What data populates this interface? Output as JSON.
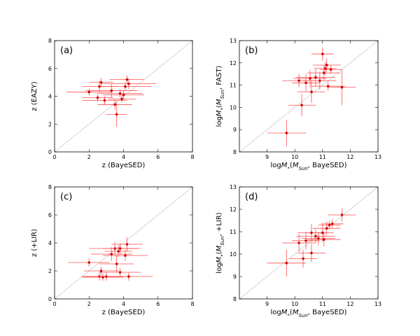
{
  "figure": {
    "panel_count": 4
  },
  "colors": {
    "points": "#d40000",
    "error_bars": "#ff3b3b",
    "diagonal": "#9a9a9a",
    "axes": "#000000"
  },
  "chart_data": [
    {
      "type": "scatter",
      "panel_label": "(a)",
      "xlabel": "z (BayeSED)",
      "ylabel": "z (EAZY)",
      "xlim": [
        0,
        8
      ],
      "ylim": [
        0,
        8
      ],
      "xticks": [
        "0",
        "2",
        "4",
        "6",
        "8"
      ],
      "yticks": [
        "0",
        "2",
        "4",
        "6",
        "8"
      ],
      "one_to_one_line": true,
      "points": [
        {
          "x": 2.0,
          "y": 4.3,
          "xerr": 1.3,
          "yerr": 0.25
        },
        {
          "x": 2.6,
          "y": 4.7,
          "xerr": 1.0,
          "yerr": 0.4
        },
        {
          "x": 2.7,
          "y": 5.0,
          "xerr": 0.7,
          "yerr": 0.3
        },
        {
          "x": 2.5,
          "y": 3.9,
          "xerr": 0.9,
          "yerr": 0.3
        },
        {
          "x": 2.9,
          "y": 3.7,
          "xerr": 1.3,
          "yerr": 0.3
        },
        {
          "x": 3.3,
          "y": 4.4,
          "xerr": 1.5,
          "yerr": 0.5
        },
        {
          "x": 3.5,
          "y": 3.4,
          "xerr": 1.0,
          "yerr": 0.35
        },
        {
          "x": 3.6,
          "y": 2.7,
          "xerr": 0.6,
          "yerr": 0.9
        },
        {
          "x": 3.8,
          "y": 4.2,
          "xerr": 1.3,
          "yerr": 0.3
        },
        {
          "x": 3.9,
          "y": 3.8,
          "xerr": 0.8,
          "yerr": 0.25
        },
        {
          "x": 4.0,
          "y": 4.1,
          "xerr": 1.2,
          "yerr": 0.3
        },
        {
          "x": 4.1,
          "y": 4.7,
          "xerr": 1.5,
          "yerr": 0.3
        },
        {
          "x": 4.2,
          "y": 5.2,
          "xerr": 1.0,
          "yerr": 0.3
        },
        {
          "x": 4.3,
          "y": 4.9,
          "xerr": 1.6,
          "yerr": 0.4
        }
      ]
    },
    {
      "type": "scatter",
      "panel_label": "(b)",
      "xlabel": "logM*(M_Sun, BayeSED)",
      "ylabel": "logM*(M_Sun, FAST)",
      "xlim": [
        8,
        13
      ],
      "ylim": [
        8,
        13
      ],
      "xticks": [
        "9",
        "10",
        "11",
        "12",
        "13"
      ],
      "yticks": [
        "8",
        "9",
        "10",
        "11",
        "12",
        "13"
      ],
      "one_to_one_line": true,
      "points": [
        {
          "x": 9.7,
          "y": 8.85,
          "xerr": 0.7,
          "yerr": 0.6
        },
        {
          "x": 10.25,
          "y": 10.1,
          "xerr": 0.5,
          "yerr": 0.5
        },
        {
          "x": 10.15,
          "y": 11.2,
          "xerr": 0.6,
          "yerr": 0.3
        },
        {
          "x": 10.4,
          "y": 11.1,
          "xerr": 0.5,
          "yerr": 0.4
        },
        {
          "x": 10.55,
          "y": 11.3,
          "xerr": 0.6,
          "yerr": 0.4
        },
        {
          "x": 10.6,
          "y": 10.7,
          "xerr": 0.5,
          "yerr": 0.5
        },
        {
          "x": 10.75,
          "y": 11.35,
          "xerr": 0.7,
          "yerr": 0.4
        },
        {
          "x": 10.9,
          "y": 11.2,
          "xerr": 0.6,
          "yerr": 0.4
        },
        {
          "x": 11.0,
          "y": 12.4,
          "xerr": 0.4,
          "yerr": 0.3
        },
        {
          "x": 11.05,
          "y": 11.55,
          "xerr": 0.6,
          "yerr": 0.35
        },
        {
          "x": 11.1,
          "y": 11.75,
          "xerr": 0.4,
          "yerr": 0.3
        },
        {
          "x": 11.15,
          "y": 11.9,
          "xerr": 0.5,
          "yerr": 0.3
        },
        {
          "x": 11.3,
          "y": 11.7,
          "xerr": 0.4,
          "yerr": 0.2
        },
        {
          "x": 11.2,
          "y": 10.95,
          "xerr": 0.6,
          "yerr": 0.2
        },
        {
          "x": 11.7,
          "y": 10.9,
          "xerr": 0.5,
          "yerr": 0.8
        }
      ]
    },
    {
      "type": "scatter",
      "panel_label": "(c)",
      "xlabel": "z (BayeSED)",
      "ylabel": "z (+LIR)",
      "xlim": [
        0,
        8
      ],
      "ylim": [
        0,
        8
      ],
      "xticks": [
        "0",
        "2",
        "4",
        "6",
        "8"
      ],
      "yticks": [
        "0",
        "2",
        "4",
        "6",
        "8"
      ],
      "one_to_one_line": true,
      "points": [
        {
          "x": 2.0,
          "y": 2.6,
          "xerr": 1.2,
          "yerr": 0.3
        },
        {
          "x": 2.6,
          "y": 1.6,
          "xerr": 1.0,
          "yerr": 0.3
        },
        {
          "x": 2.7,
          "y": 2.0,
          "xerr": 1.0,
          "yerr": 0.3
        },
        {
          "x": 2.8,
          "y": 1.55,
          "xerr": 1.2,
          "yerr": 0.25
        },
        {
          "x": 3.0,
          "y": 1.6,
          "xerr": 1.3,
          "yerr": 0.3
        },
        {
          "x": 3.3,
          "y": 3.2,
          "xerr": 1.2,
          "yerr": 0.5
        },
        {
          "x": 3.5,
          "y": 3.6,
          "xerr": 1.5,
          "yerr": 0.5
        },
        {
          "x": 3.6,
          "y": 2.5,
          "xerr": 1.0,
          "yerr": 0.6
        },
        {
          "x": 3.7,
          "y": 3.4,
          "xerr": 0.8,
          "yerr": 0.4
        },
        {
          "x": 3.8,
          "y": 1.9,
          "xerr": 1.2,
          "yerr": 0.3
        },
        {
          "x": 3.8,
          "y": 3.6,
          "xerr": 1.0,
          "yerr": 0.4
        },
        {
          "x": 4.1,
          "y": 3.1,
          "xerr": 1.3,
          "yerr": 0.4
        },
        {
          "x": 4.2,
          "y": 3.9,
          "xerr": 0.9,
          "yerr": 0.5
        },
        {
          "x": 4.3,
          "y": 1.6,
          "xerr": 1.4,
          "yerr": 0.3
        }
      ]
    },
    {
      "type": "scatter",
      "panel_label": "(d)",
      "xlabel": "logM*(M_Sun, BayeSED)",
      "ylabel": "logM*(M_Sun, +LIR)",
      "xlim": [
        8,
        13
      ],
      "ylim": [
        8,
        13
      ],
      "xticks": [
        "9",
        "10",
        "11",
        "12",
        "13"
      ],
      "yticks": [
        "8",
        "9",
        "10",
        "11",
        "12",
        "13"
      ],
      "one_to_one_line": true,
      "points": [
        {
          "x": 9.7,
          "y": 9.6,
          "xerr": 0.7,
          "yerr": 0.6
        },
        {
          "x": 10.15,
          "y": 10.5,
          "xerr": 0.6,
          "yerr": 0.4
        },
        {
          "x": 10.3,
          "y": 9.8,
          "xerr": 0.5,
          "yerr": 0.4
        },
        {
          "x": 10.4,
          "y": 10.6,
          "xerr": 0.5,
          "yerr": 0.4
        },
        {
          "x": 10.6,
          "y": 10.95,
          "xerr": 0.5,
          "yerr": 0.4
        },
        {
          "x": 10.6,
          "y": 10.05,
          "xerr": 0.5,
          "yerr": 0.4
        },
        {
          "x": 10.75,
          "y": 10.8,
          "xerr": 0.7,
          "yerr": 0.3
        },
        {
          "x": 10.85,
          "y": 10.7,
          "xerr": 0.6,
          "yerr": 0.3
        },
        {
          "x": 11.0,
          "y": 10.95,
          "xerr": 0.4,
          "yerr": 0.4
        },
        {
          "x": 11.05,
          "y": 10.65,
          "xerr": 0.6,
          "yerr": 0.3
        },
        {
          "x": 11.15,
          "y": 11.15,
          "xerr": 0.5,
          "yerr": 0.3
        },
        {
          "x": 11.25,
          "y": 11.3,
          "xerr": 0.4,
          "yerr": 0.2
        },
        {
          "x": 11.35,
          "y": 11.35,
          "xerr": 0.4,
          "yerr": 0.2
        },
        {
          "x": 11.7,
          "y": 11.75,
          "xerr": 0.5,
          "yerr": 0.3
        }
      ]
    }
  ]
}
